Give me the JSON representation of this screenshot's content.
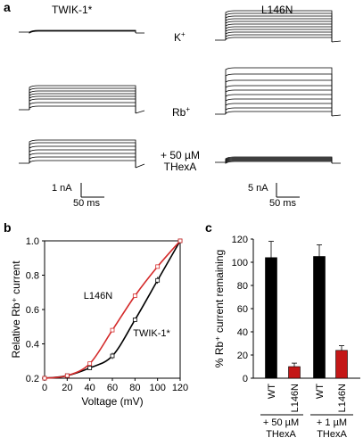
{
  "panel_a": {
    "label": "a",
    "col_left": "TWIK-1*",
    "col_right": "L146N",
    "cond_k": "K",
    "cond_k_sup": "+",
    "cond_rb": "Rb",
    "cond_rb_sup": "+",
    "cond_thexa_1": "+ 50 µM",
    "cond_thexa_2": "THexA",
    "scale_left_current": "1 nA",
    "scale_left_time": "50 ms",
    "scale_right_current": "5 nA",
    "scale_right_time": "50 ms"
  },
  "panel_b": {
    "label": "b",
    "trace_color_wt": "#000000",
    "trace_color_l146n": "#d42a2a"
  },
  "panel_c": {
    "label": "c",
    "group1_line1": "+ 50 µM",
    "group1_line2": "THexA",
    "group2_line1": "+ 1 µM",
    "group2_line2": "THexA"
  },
  "chart_data": [
    {
      "type": "line",
      "xlabel": "Voltage (mV)",
      "ylabel": "Relative Rb⁺ current",
      "xlim": [
        0,
        120
      ],
      "ylim": [
        0.2,
        1.0
      ],
      "x_ticks": [
        "0",
        "20",
        "40",
        "60",
        "80",
        "100",
        "120"
      ],
      "y_ticks": [
        "0.2",
        "0.4",
        "0.6",
        "0.8",
        "1.0"
      ],
      "series": [
        {
          "name": "TWIK-1*",
          "color": "#000000",
          "x": [
            0,
            20,
            40,
            60,
            80,
            100,
            120
          ],
          "y": [
            0.2,
            0.215,
            0.26,
            0.33,
            0.54,
            0.77,
            1.0
          ],
          "err": [
            0.003,
            0.006,
            0.012,
            0.018,
            0.012,
            0.02,
            0.005
          ]
        },
        {
          "name": "L146N",
          "color": "#d42a2a",
          "x": [
            0,
            20,
            40,
            60,
            80,
            100,
            120
          ],
          "y": [
            0.2,
            0.215,
            0.285,
            0.48,
            0.68,
            0.85,
            1.0
          ],
          "err": [
            0.003,
            0.005,
            0.008,
            0.008,
            0.008,
            0.008,
            0.005
          ]
        }
      ]
    },
    {
      "type": "bar",
      "ylabel": "% Rb⁺ current remaining",
      "ylim": [
        0,
        120
      ],
      "y_ticks": [
        "0",
        "20",
        "40",
        "60",
        "80",
        "100",
        "120"
      ],
      "categories": [
        "WT",
        "L146N",
        "WT",
        "L146N"
      ],
      "values": [
        104,
        10,
        105,
        24
      ],
      "errors": [
        14,
        3,
        10,
        4
      ],
      "colors": [
        "#000000",
        "#c41717",
        "#000000",
        "#c41717"
      ]
    }
  ]
}
